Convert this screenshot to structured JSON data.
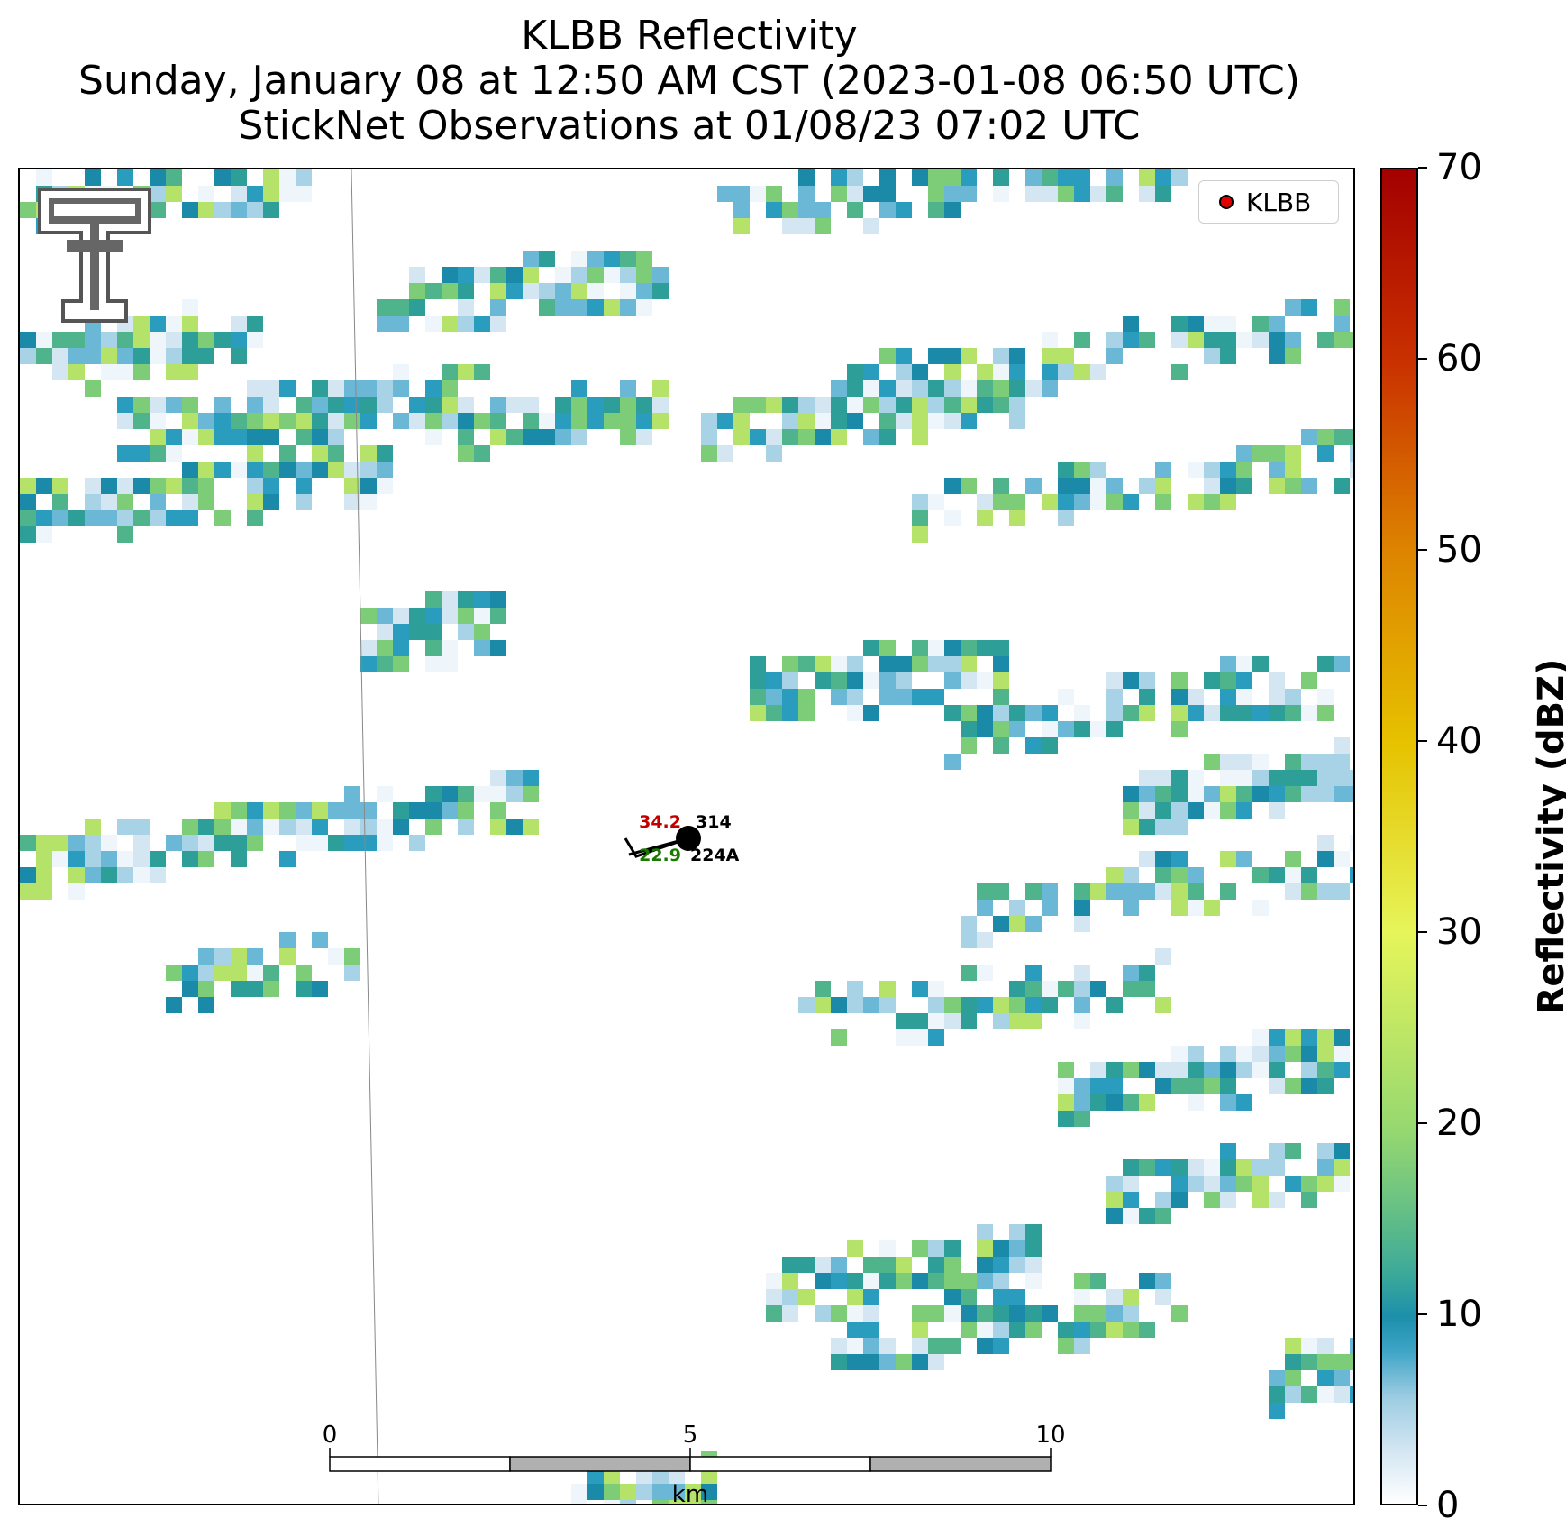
{
  "title": {
    "line1": "KLBB Reflectivity",
    "line2": "Sunday, January 08 at 12:50 AM CST (2023-01-08 06:50 UTC)",
    "line3": "StickNet Observations at 01/08/23 07:02 UTC"
  },
  "legend": {
    "label": "KLBB",
    "marker_color": "#e00000"
  },
  "colorbar": {
    "label": "Reflectivity (dBZ)",
    "min": 0,
    "max": 70,
    "ticks": [
      "0",
      "10",
      "20",
      "30",
      "40",
      "50",
      "60",
      "70"
    ]
  },
  "station": {
    "temperature": "34.2",
    "dewpoint": "22.9",
    "pressure": "314",
    "id": "224A",
    "temperature_color": "#c00000",
    "dewpoint_color": "#1a7a00"
  },
  "scale_bar": {
    "labels": [
      "0",
      "5",
      "10"
    ],
    "unit": "km"
  },
  "logo": {
    "name": "texas-tech-double-t-logo"
  }
}
